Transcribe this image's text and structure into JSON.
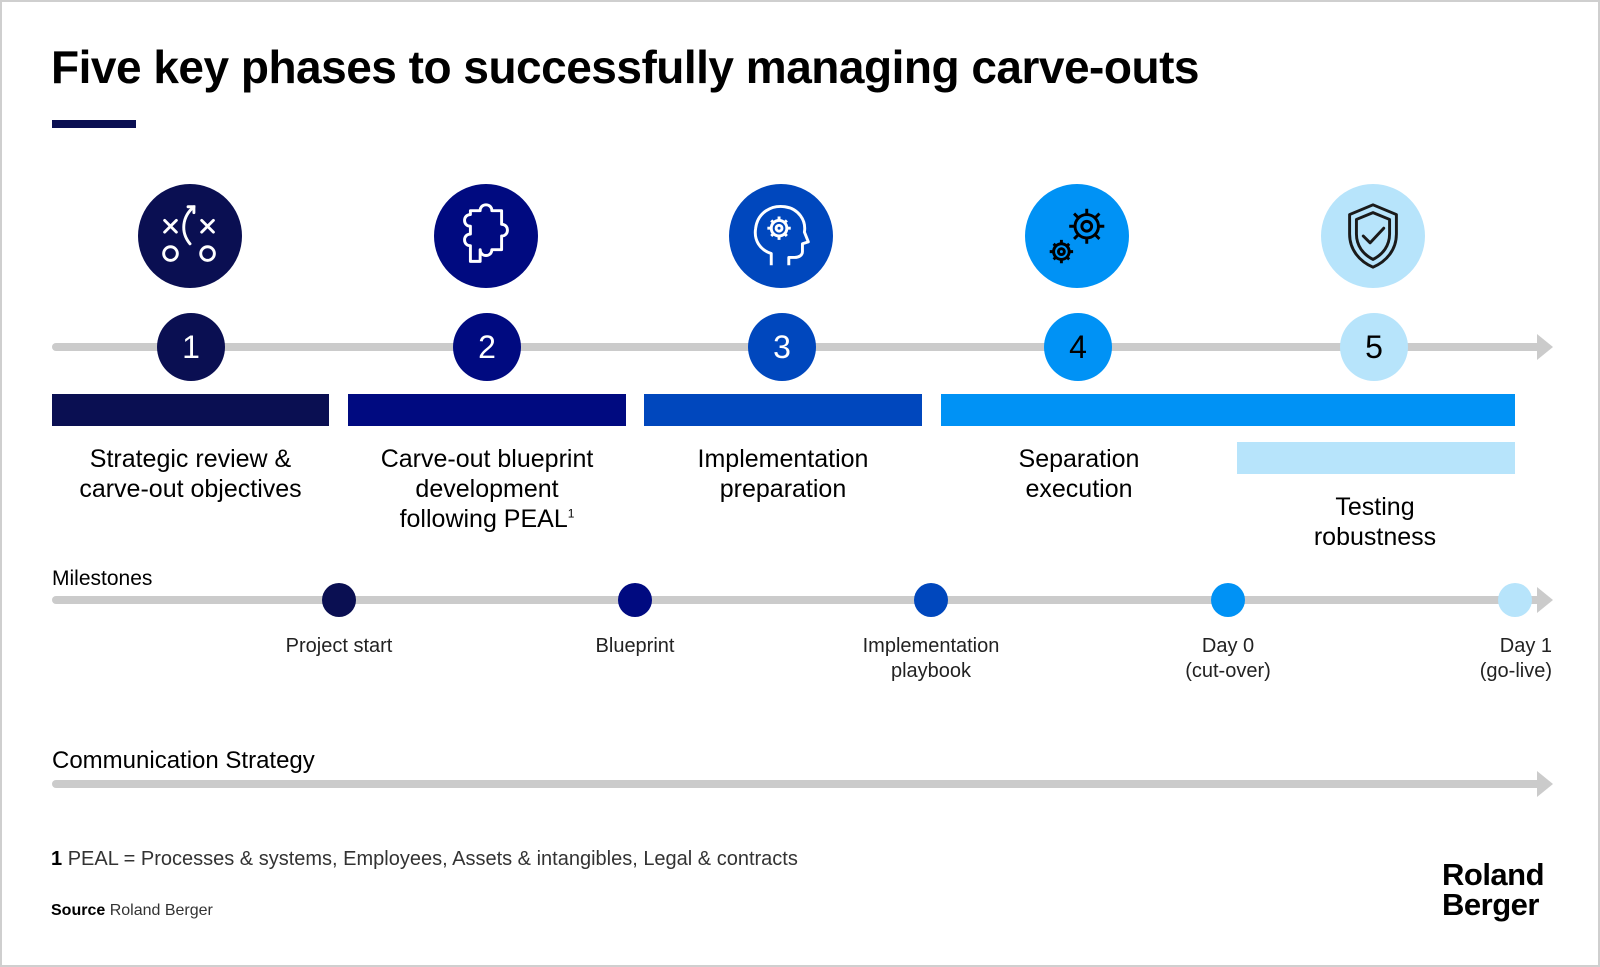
{
  "title": "Five key phases to successfully managing carve-outs",
  "colors": {
    "phase1": "#0a0f52",
    "phase2": "#000a80",
    "phase3": "#0047bd",
    "phase4": "#0092f5",
    "phase5": "#b7e4fb",
    "line": "#cbcbcb"
  },
  "phases": [
    {
      "number": "1",
      "icon": "strategy-play-icon",
      "label_line1": "Strategic review &",
      "label_line2": "carve-out objectives"
    },
    {
      "number": "2",
      "icon": "puzzle-piece-icon",
      "label_line1": "Carve-out blueprint",
      "label_line2": "development",
      "label_line3": "following PEAL",
      "label_sup": "1"
    },
    {
      "number": "3",
      "icon": "head-gear-icon",
      "label_line1": "Implementation",
      "label_line2": "preparation"
    },
    {
      "number": "4",
      "icon": "gears-icon",
      "label_line1": "Separation",
      "label_line2": "execution"
    },
    {
      "number": "5",
      "icon": "shield-check-icon",
      "label_line1": "Testing",
      "label_line2": "robustness"
    }
  ],
  "milestones": {
    "label": "Milestones",
    "items": [
      {
        "line1": "Project start"
      },
      {
        "line1": "Blueprint"
      },
      {
        "line1": "Implementation",
        "line2": "playbook"
      },
      {
        "line1": "Day 0",
        "line2": "(cut-over)"
      },
      {
        "line1": "Day 1",
        "line2": "(go-live)"
      }
    ]
  },
  "communication": {
    "label": "Communication Strategy"
  },
  "footnote": {
    "marker": "1",
    "text": "PEAL = Processes & systems, Employees, Assets & intangibles, Legal & contracts"
  },
  "source": {
    "label": "Source",
    "text": "Roland Berger"
  },
  "logo": {
    "line1": "Roland",
    "line2": "Berger"
  }
}
